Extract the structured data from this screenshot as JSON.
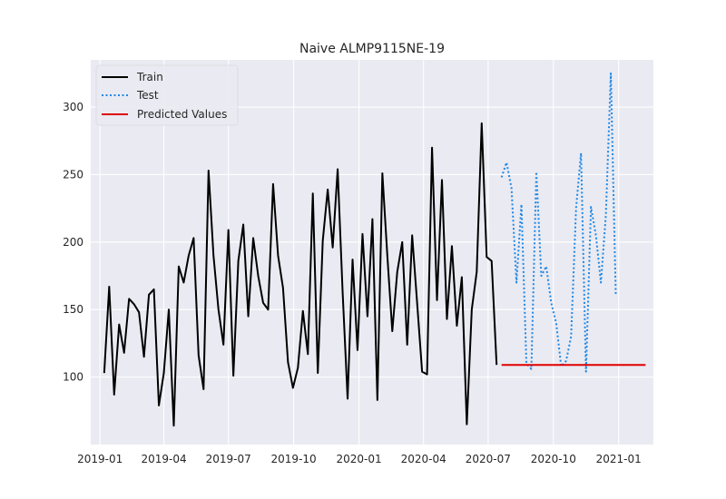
{
  "chart_data": {
    "type": "line",
    "title": "Naive ALMP9115NE-19",
    "xlabel": "",
    "ylabel": "",
    "x_ticks": [
      "2019-01",
      "2019-04",
      "2019-07",
      "2019-10",
      "2020-01",
      "2020-04",
      "2020-07",
      "2020-10",
      "2021-01"
    ],
    "y_ticks": [
      100,
      150,
      200,
      250,
      300
    ],
    "xlim": [
      "2018-12-19",
      "2021-02-19"
    ],
    "ylim": [
      50,
      335
    ],
    "grid": true,
    "legend_position": "top-left",
    "colors": {
      "Train": "#000000",
      "Test": "#1e88e5",
      "Predicted Values": "#e00000",
      "background": "#eaeaf2",
      "grid": "#ffffff"
    },
    "series": [
      {
        "name": "Train",
        "style": "solid",
        "x": [
          "2019-01-07",
          "2019-01-14",
          "2019-01-21",
          "2019-01-28",
          "2019-02-04",
          "2019-02-11",
          "2019-02-18",
          "2019-02-25",
          "2019-03-04",
          "2019-03-11",
          "2019-03-18",
          "2019-03-25",
          "2019-04-01",
          "2019-04-08",
          "2019-04-15",
          "2019-04-22",
          "2019-04-29",
          "2019-05-06",
          "2019-05-13",
          "2019-05-20",
          "2019-05-27",
          "2019-06-03",
          "2019-06-10",
          "2019-06-17",
          "2019-06-24",
          "2019-07-01",
          "2019-07-08",
          "2019-07-15",
          "2019-07-22",
          "2019-07-29",
          "2019-08-05",
          "2019-08-12",
          "2019-08-19",
          "2019-08-26",
          "2019-09-02",
          "2019-09-09",
          "2019-09-16",
          "2019-09-23",
          "2019-09-30",
          "2019-10-07",
          "2019-10-14",
          "2019-10-21",
          "2019-10-28",
          "2019-11-04",
          "2019-11-11",
          "2019-11-18",
          "2019-11-25",
          "2019-12-02",
          "2019-12-09",
          "2019-12-16",
          "2019-12-23",
          "2019-12-30",
          "2020-01-06",
          "2020-01-13",
          "2020-01-20",
          "2020-01-27",
          "2020-02-03",
          "2020-02-10",
          "2020-02-17",
          "2020-02-24",
          "2020-03-02",
          "2020-03-09",
          "2020-03-16",
          "2020-03-23",
          "2020-03-30",
          "2020-04-06",
          "2020-04-13",
          "2020-04-20",
          "2020-04-27",
          "2020-05-04",
          "2020-05-11",
          "2020-05-18",
          "2020-05-25",
          "2020-06-01",
          "2020-06-08",
          "2020-06-15",
          "2020-06-22",
          "2020-06-29",
          "2020-07-06",
          "2020-07-13"
        ],
        "values": [
          103,
          167,
          87,
          139,
          118,
          158,
          154,
          148,
          115,
          161,
          165,
          79,
          103,
          150,
          64,
          182,
          170,
          190,
          203,
          116,
          91,
          253,
          190,
          150,
          124,
          209,
          101,
          186,
          213,
          145,
          203,
          175,
          155,
          150,
          243,
          190,
          166,
          111,
          92,
          107,
          149,
          117,
          236,
          103,
          201,
          239,
          196,
          254,
          163,
          84,
          187,
          120,
          206,
          145,
          217,
          83,
          251,
          190,
          134,
          178,
          200,
          124,
          205,
          155,
          104,
          102,
          270,
          157,
          246,
          143,
          197,
          138,
          174,
          65,
          150,
          178,
          288,
          189,
          186,
          109
        ]
      },
      {
        "name": "Test",
        "style": "dotted",
        "x": [
          "2020-07-20",
          "2020-07-27",
          "2020-08-03",
          "2020-08-10",
          "2020-08-17",
          "2020-08-24",
          "2020-08-31",
          "2020-09-07",
          "2020-09-14",
          "2020-09-21",
          "2020-09-28",
          "2020-10-05",
          "2020-10-12",
          "2020-10-19",
          "2020-10-26",
          "2020-11-02",
          "2020-11-09",
          "2020-11-16",
          "2020-11-23",
          "2020-11-30",
          "2020-12-07",
          "2020-12-14",
          "2020-12-21",
          "2020-12-28"
        ],
        "values": [
          248,
          259,
          240,
          170,
          228,
          110,
          106,
          252,
          175,
          182,
          155,
          140,
          108,
          112,
          130,
          225,
          266,
          104,
          226,
          205,
          170,
          220,
          325,
          160
        ]
      },
      {
        "name": "Predicted Values",
        "style": "solid",
        "x": [
          "2020-07-20",
          "2021-02-08"
        ],
        "values": [
          109,
          109
        ]
      }
    ]
  }
}
